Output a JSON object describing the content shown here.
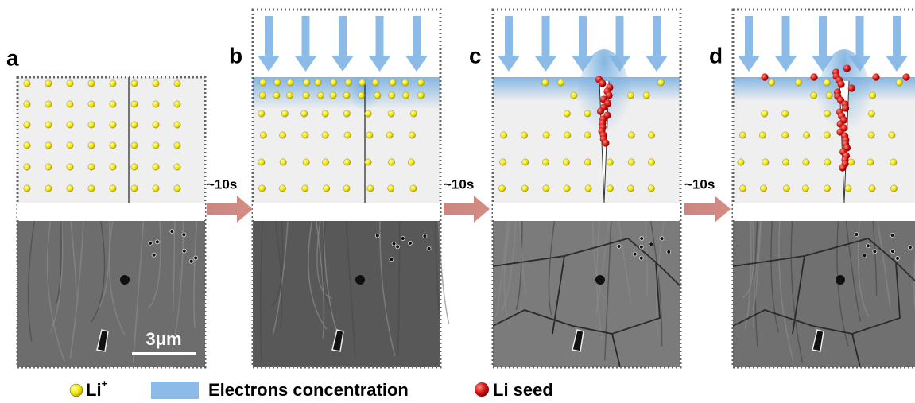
{
  "panels": [
    {
      "label": "a"
    },
    {
      "label": "b"
    },
    {
      "label": "c"
    },
    {
      "label": "d"
    }
  ],
  "transitions": [
    "~10s",
    "~10s",
    "~10s"
  ],
  "scale_bar": "3μm",
  "legend": {
    "li_ion": {
      "text": "Li",
      "superscript": "+"
    },
    "electrons": "Electrons concentration",
    "li_seed": "Li seed"
  }
}
